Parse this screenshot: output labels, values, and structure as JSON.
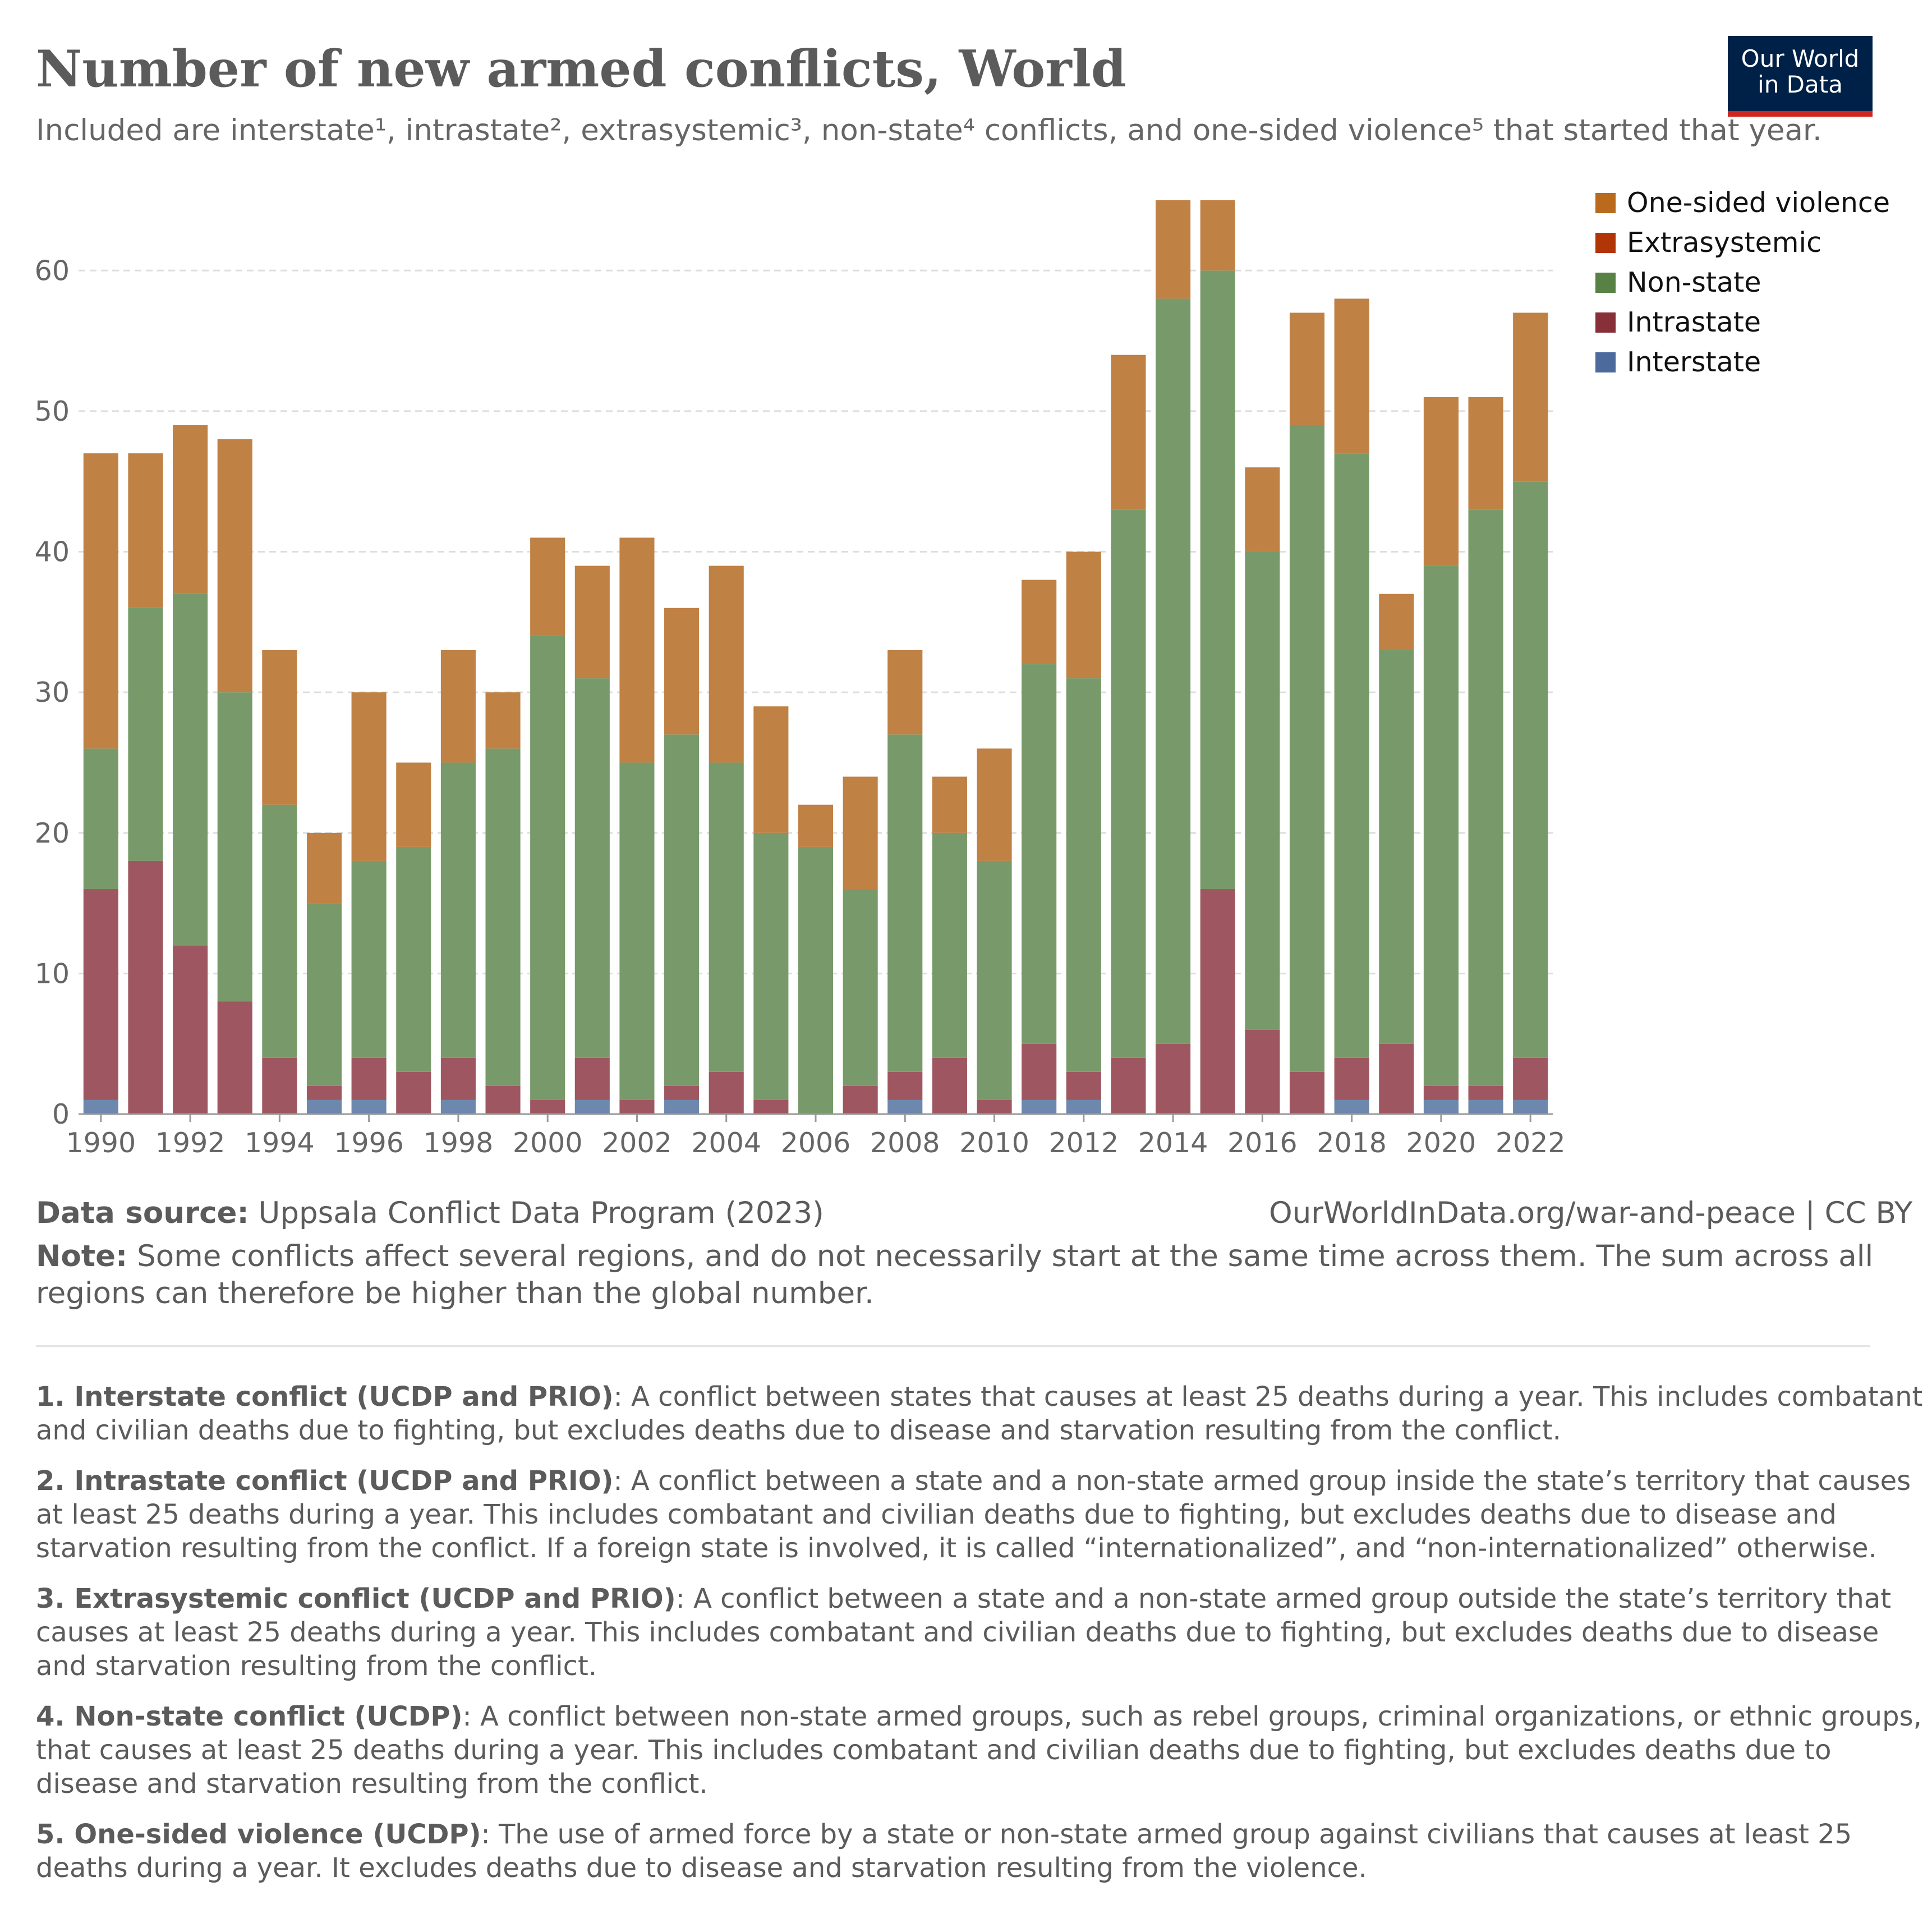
{
  "header": {
    "title": "Number of new armed conflicts, World",
    "subtitle": "Included are interstate¹, intrastate², extrasystemic³, non-state⁴ conflicts, and one-sided violence⁵ that started that year.",
    "logo_line1": "Our World",
    "logo_line2": "in Data"
  },
  "colors": {
    "interstate": "#6d87ad",
    "intrastate": "#9e5760",
    "extrasystemic": "#b13507",
    "nonstate": "#789a6a",
    "onesided": "#c08144",
    "grid": "#dddddd",
    "axis": "#999999"
  },
  "legend": [
    {
      "label": "One-sided violence",
      "color": "#b96a1c"
    },
    {
      "label": "Extrasystemic",
      "color": "#b13507"
    },
    {
      "label": "Non-state",
      "color": "#578145"
    },
    {
      "label": "Intrastate",
      "color": "#883039"
    },
    {
      "label": "Interstate",
      "color": "#4c6a9c"
    }
  ],
  "chart_data": {
    "type": "bar",
    "stacked": true,
    "x": [
      1990,
      1991,
      1992,
      1993,
      1994,
      1995,
      1996,
      1997,
      1998,
      1999,
      2000,
      2001,
      2002,
      2003,
      2004,
      2005,
      2006,
      2007,
      2008,
      2009,
      2010,
      2011,
      2012,
      2013,
      2014,
      2015,
      2016,
      2017,
      2018,
      2019,
      2020,
      2021,
      2022
    ],
    "x_tick_labels": [
      "1990",
      "1992",
      "1994",
      "1996",
      "1998",
      "2000",
      "2002",
      "2004",
      "2006",
      "2008",
      "2010",
      "2012",
      "2014",
      "2016",
      "2018",
      "2020",
      "2022"
    ],
    "y_tick_labels": [
      "0",
      "10",
      "20",
      "30",
      "40",
      "50",
      "60"
    ],
    "ylim": [
      0,
      65
    ],
    "grid": true,
    "legend_position": "right",
    "series": [
      {
        "name": "Interstate",
        "values": [
          1,
          0,
          0,
          0,
          0,
          1,
          1,
          0,
          1,
          0,
          0,
          1,
          0,
          1,
          0,
          0,
          0,
          0,
          1,
          0,
          0,
          1,
          1,
          0,
          0,
          0,
          0,
          0,
          1,
          0,
          1,
          1,
          1
        ]
      },
      {
        "name": "Intrastate",
        "values": [
          15,
          18,
          12,
          8,
          4,
          1,
          3,
          3,
          3,
          2,
          1,
          3,
          1,
          1,
          3,
          1,
          0,
          2,
          2,
          4,
          1,
          4,
          2,
          4,
          5,
          16,
          6,
          3,
          3,
          5,
          1,
          1,
          3
        ]
      },
      {
        "name": "Extrasystemic",
        "values": [
          0,
          0,
          0,
          0,
          0,
          0,
          0,
          0,
          0,
          0,
          0,
          0,
          0,
          0,
          0,
          0,
          0,
          0,
          0,
          0,
          0,
          0,
          0,
          0,
          0,
          0,
          0,
          0,
          0,
          0,
          0,
          0,
          0
        ]
      },
      {
        "name": "Non-state",
        "values": [
          10,
          18,
          25,
          22,
          18,
          13,
          14,
          16,
          21,
          24,
          33,
          27,
          24,
          25,
          22,
          19,
          19,
          14,
          24,
          16,
          17,
          27,
          28,
          39,
          53,
          44,
          34,
          46,
          43,
          28,
          37,
          41,
          41
        ]
      },
      {
        "name": "One-sided violence",
        "values": [
          21,
          11,
          12,
          18,
          11,
          5,
          12,
          6,
          8,
          4,
          7,
          8,
          16,
          9,
          14,
          9,
          3,
          8,
          6,
          4,
          8,
          6,
          9,
          11,
          7,
          5,
          6,
          8,
          11,
          4,
          12,
          8,
          12
        ]
      }
    ]
  },
  "footer": {
    "source_label": "Data source:",
    "source_text": " Uppsala Conflict Data Program (2023)",
    "url": "OurWorldInData.org/war-and-peace | CC BY",
    "note_label": "Note:",
    "note_text": " Some conflicts affect several regions, and do not necessarily start at the same time across them. The sum across all regions can therefore be higher than the global number."
  },
  "definitions": [
    {
      "term": "1. Interstate conflict (UCDP and PRIO)",
      "text": ": A conflict between states that causes at least 25 deaths during a year. This includes combatant and civilian deaths due to fighting, but excludes deaths due to disease and starvation resulting from the conflict."
    },
    {
      "term": "2. Intrastate conflict (UCDP and PRIO)",
      "text": ": A conflict between a state and a non-state armed group inside the state’s territory that causes at least 25 deaths during a year. This includes combatant and civilian deaths due to fighting, but excludes deaths due to disease and starvation resulting from the conflict. If a foreign state is involved, it is called “internationalized”, and “non-internationalized” otherwise."
    },
    {
      "term": "3. Extrasystemic conflict (UCDP and PRIO)",
      "text": ": A conflict between a state and a non-state armed group outside the state’s territory that causes at least 25 deaths during a year. This includes combatant and civilian deaths due to fighting, but excludes deaths due to disease and starvation resulting from the conflict."
    },
    {
      "term": "4. Non-state conflict (UCDP)",
      "text": ": A conflict between non-state armed groups, such as rebel groups, criminal organizations, or ethnic groups, that causes at least 25 deaths during a year. This includes combatant and civilian deaths due to fighting, but excludes deaths due to disease and starvation resulting from the conflict."
    },
    {
      "term": "5. One-sided violence (UCDP)",
      "text": ": The use of armed force by a state or non-state armed group against civilians that causes at least 25 deaths during a year. It excludes deaths due to disease and starvation resulting from the violence."
    }
  ]
}
